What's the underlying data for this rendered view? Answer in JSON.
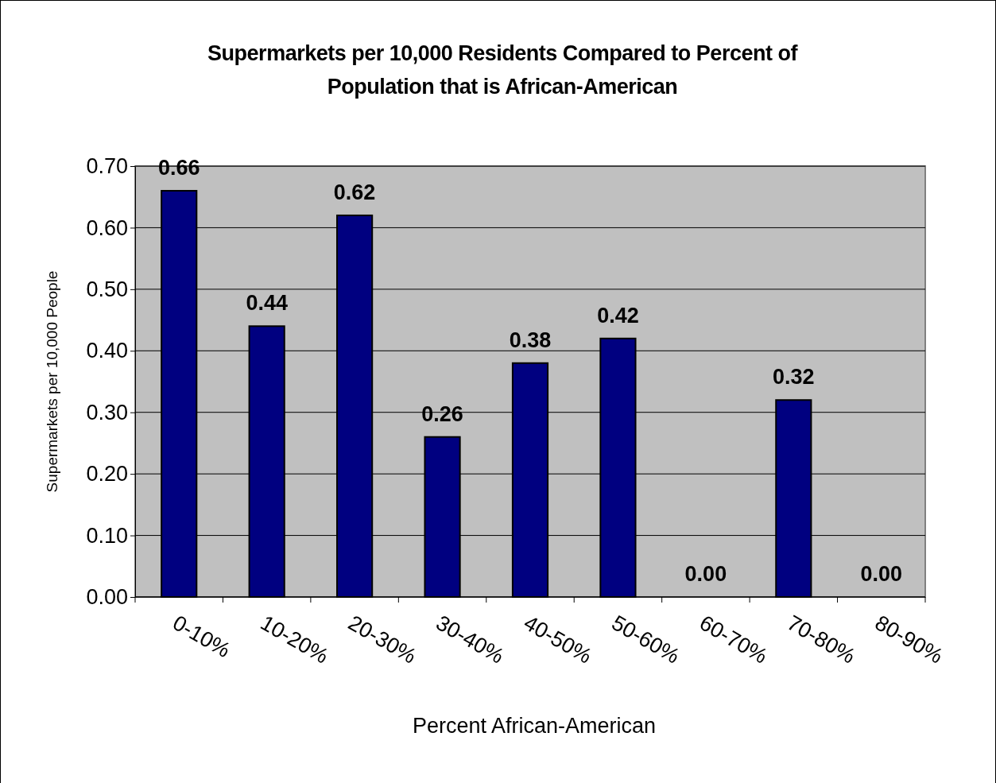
{
  "chart_data": {
    "type": "bar",
    "title": "Supermarkets per 10,000 Residents Compared to Percent of Population that is African-American",
    "xlabel": "Percent African-American",
    "ylabel": "Supermarkets per 10,000 People",
    "categories": [
      "0-10%",
      "10-20%",
      "20-30%",
      "30-40%",
      "40-50%",
      "50-60%",
      "60-70%",
      "70-80%",
      "80-90%"
    ],
    "values": [
      0.66,
      0.44,
      0.62,
      0.26,
      0.38,
      0.42,
      0,
      0.32,
      0
    ],
    "value_labels": [
      "0.66",
      "0.44",
      "0.62",
      "0.26",
      "0.38",
      "0.42",
      "0.00",
      "0.32",
      "0.00"
    ],
    "color": "#000080",
    "ylim": [
      0,
      0.7
    ],
    "yticks": [
      {
        "value": 0,
        "label": "0.00"
      },
      {
        "value": 0.1,
        "label": "0.10"
      },
      {
        "value": 0.2,
        "label": "0.20"
      },
      {
        "value": 0.3,
        "label": "0.30"
      },
      {
        "value": 0.4,
        "label": "0.40"
      },
      {
        "value": 0.5,
        "label": "0.50"
      },
      {
        "value": 0.6,
        "label": "0.60"
      },
      {
        "value": 0.7,
        "label": "0.70"
      }
    ],
    "grid": "y"
  }
}
